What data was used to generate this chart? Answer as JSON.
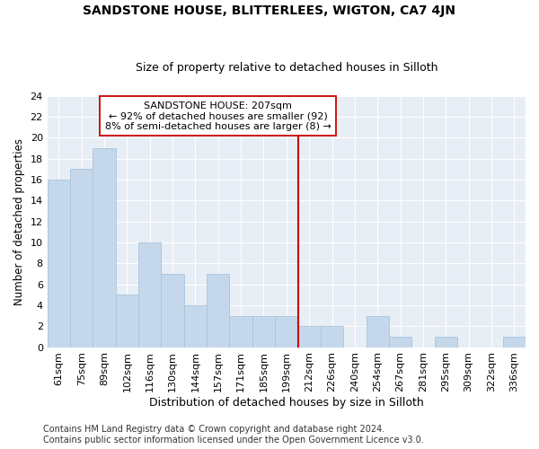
{
  "title": "SANDSTONE HOUSE, BLITTERLEES, WIGTON, CA7 4JN",
  "subtitle": "Size of property relative to detached houses in Silloth",
  "xlabel": "Distribution of detached houses by size in Silloth",
  "ylabel": "Number of detached properties",
  "categories": [
    "61sqm",
    "75sqm",
    "89sqm",
    "102sqm",
    "116sqm",
    "130sqm",
    "144sqm",
    "157sqm",
    "171sqm",
    "185sqm",
    "199sqm",
    "212sqm",
    "226sqm",
    "240sqm",
    "254sqm",
    "267sqm",
    "281sqm",
    "295sqm",
    "309sqm",
    "322sqm",
    "336sqm"
  ],
  "values": [
    16,
    17,
    19,
    5,
    10,
    7,
    4,
    7,
    3,
    3,
    3,
    2,
    2,
    0,
    3,
    1,
    0,
    1,
    0,
    0,
    1
  ],
  "bar_color": "#c5d8eb",
  "bar_edge_color": "#a8c4dc",
  "vline_color": "#cc0000",
  "annotation_text": "SANDSTONE HOUSE: 207sqm\n← 92% of detached houses are smaller (92)\n8% of semi-detached houses are larger (8) →",
  "annotation_box_color": "#ffffff",
  "annotation_box_edge": "#cc0000",
  "ylim": [
    0,
    24
  ],
  "yticks": [
    0,
    2,
    4,
    6,
    8,
    10,
    12,
    14,
    16,
    18,
    20,
    22,
    24
  ],
  "bg_color": "#e8eef5",
  "footer": "Contains HM Land Registry data © Crown copyright and database right 2024.\nContains public sector information licensed under the Open Government Licence v3.0.",
  "title_fontsize": 10,
  "subtitle_fontsize": 9,
  "xlabel_fontsize": 9,
  "ylabel_fontsize": 8.5,
  "tick_fontsize": 8,
  "footer_fontsize": 7,
  "ann_fontsize": 8
}
